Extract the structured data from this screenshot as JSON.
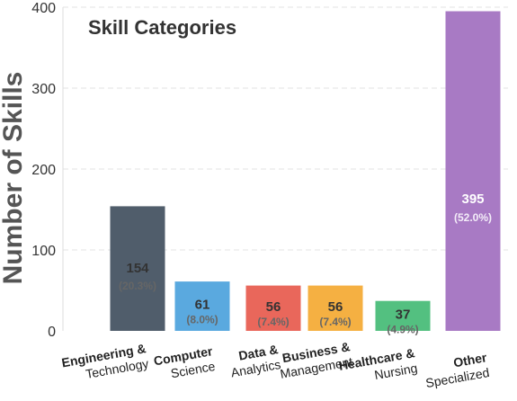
{
  "chart_data": {
    "type": "bar",
    "title": "Skill Categories",
    "ylabel": "Number of Skills",
    "xlabel": "",
    "ylim": [
      0,
      400
    ],
    "yticks": [
      "0",
      "100",
      "200",
      "300",
      "400"
    ],
    "grid": "horizontal dashed",
    "categories": [
      {
        "line1": "Engineering &",
        "line2": "Technology"
      },
      {
        "line1": "Computer",
        "line2": "Science"
      },
      {
        "line1": "Data &",
        "line2": "Analytics"
      },
      {
        "line1": "Business &",
        "line2": "Management"
      },
      {
        "line1": "Healthcare &",
        "line2": "Nursing"
      },
      {
        "line1": "Other",
        "line2": "Specialized"
      }
    ],
    "values": [
      154,
      61,
      56,
      56,
      37,
      395
    ],
    "value_labels": [
      "154",
      "61",
      "56",
      "56",
      "37",
      "395"
    ],
    "percent_labels": [
      "(20.3%)",
      "(8.0%)",
      "(7.4%)",
      "(7.4%)",
      "(4.9%)",
      "(52.0%)"
    ],
    "colors": [
      "#505d6b",
      "#5aa9df",
      "#e9675b",
      "#f5b042",
      "#53c080",
      "#a87ac4"
    ]
  }
}
